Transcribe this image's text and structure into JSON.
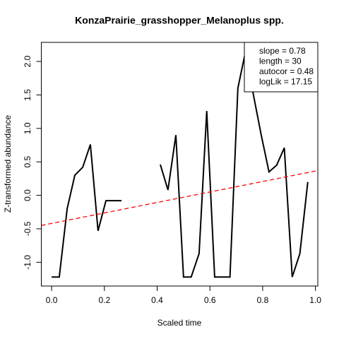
{
  "chart_data": {
    "type": "line",
    "title": "KonzaPrairie_grasshopper_Melanoplus spp.",
    "xlabel": "Scaled time",
    "ylabel": "Z-transformed abundance",
    "x": [
      0,
      0.029,
      0.059,
      0.088,
      0.118,
      0.147,
      0.176,
      0.206,
      0.235,
      0.265,
      0.294,
      0.324,
      0.353,
      0.382,
      0.412,
      0.441,
      0.471,
      0.5,
      0.529,
      0.559,
      0.588,
      0.618,
      0.647,
      0.676,
      0.706,
      0.735,
      0.765,
      0.794,
      0.824,
      0.853,
      0.882,
      0.912,
      0.941,
      0.971
    ],
    "series": [
      {
        "color": "#000000",
        "values": [
          -1.22,
          -1.22,
          -0.2,
          0.3,
          0.42,
          0.76,
          -0.53,
          -0.08,
          -0.08,
          -0.08,
          null,
          null,
          null,
          null,
          0.46,
          0.08,
          0.9,
          -1.22,
          -1.22,
          -0.87,
          1.26,
          -1.22,
          -1.22,
          -1.22,
          1.6,
          2.15,
          1.5,
          0.91,
          0.35,
          0.45,
          0.71,
          -1.22,
          -0.87,
          0.2
        ]
      }
    ],
    "trend_line": {
      "color": "#ff0000",
      "x": [
        -0.039,
        1.009
      ],
      "y": [
        -0.45,
        0.37
      ]
    },
    "legend": [
      "slope = 0.78",
      "length = 30",
      "autocor = 0.48",
      "logLik = 17.15"
    ],
    "legend_position": "top-right",
    "xlim": [
      -0.039,
      1.009
    ],
    "ylim": [
      -1.355,
      2.285
    ],
    "xticks": [
      {
        "value": 0,
        "label": "0.0"
      },
      0.2,
      0.4,
      0.6,
      0.8,
      {
        "value": 1,
        "label": "1.0"
      }
    ],
    "yticks": [
      {
        "value": -1,
        "label": "-1.0"
      },
      -0.5,
      {
        "value": 0,
        "label": "0.0"
      },
      0.5,
      {
        "value": 1,
        "label": "1.0"
      },
      1.5,
      {
        "value": 2,
        "label": "2.0"
      }
    ]
  }
}
